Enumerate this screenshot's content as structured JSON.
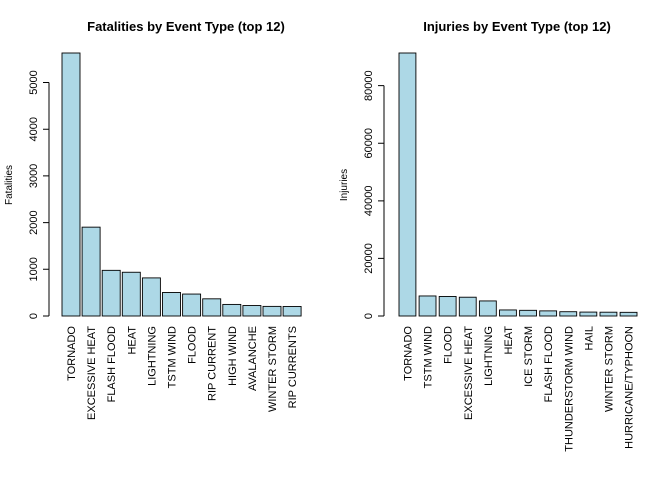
{
  "chart_data": [
    {
      "type": "bar",
      "title": "Fatalities by Event Type (top 12)",
      "xlabel": "",
      "ylabel": "Fatalities",
      "categories": [
        "TORNADO",
        "EXCESSIVE HEAT",
        "FLASH FLOOD",
        "HEAT",
        "LIGHTNING",
        "TSTM WIND",
        "FLOOD",
        "RIP CURRENT",
        "HIGH WIND",
        "AVALANCHE",
        "WINTER STORM",
        "RIP CURRENTS"
      ],
      "values": [
        5633,
        1903,
        978,
        937,
        816,
        504,
        470,
        368,
        248,
        224,
        206,
        204
      ],
      "yticks": [
        0,
        1000,
        2000,
        3000,
        4000,
        5000
      ],
      "ylim": [
        0,
        5633
      ],
      "bar_color": "#add8e6",
      "grid": false
    },
    {
      "type": "bar",
      "title": "Injuries by Event Type (top 12)",
      "xlabel": "",
      "ylabel": "Injuries",
      "categories": [
        "TORNADO",
        "TSTM WIND",
        "FLOOD",
        "EXCESSIVE HEAT",
        "LIGHTNING",
        "HEAT",
        "ICE STORM",
        "FLASH FLOOD",
        "THUNDERSTORM WIND",
        "HAIL",
        "WINTER STORM",
        "HURRICANE/TYPHOON"
      ],
      "values": [
        91346,
        6957,
        6789,
        6525,
        5230,
        2100,
        1975,
        1777,
        1488,
        1361,
        1321,
        1275
      ],
      "yticks": [
        0,
        20000,
        40000,
        60000,
        80000
      ],
      "ylim": [
        0,
        91346
      ],
      "bar_color": "#add8e6",
      "grid": false
    }
  ]
}
